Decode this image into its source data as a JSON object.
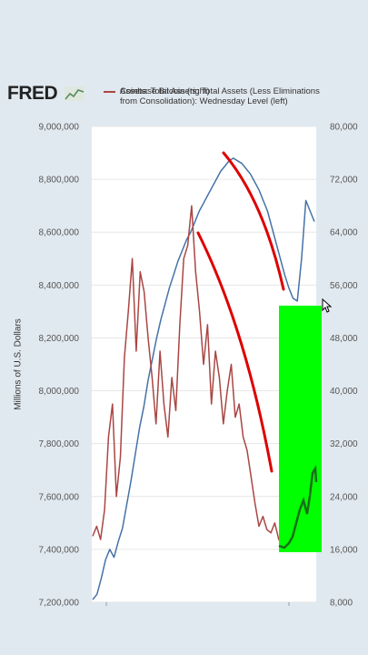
{
  "brand": {
    "logo_text": "FRED"
  },
  "chart_data": {
    "type": "line",
    "ylabel": "Millions of U.S. Dollars",
    "left_axis": {
      "min": 7200000,
      "max": 9000000,
      "ticks": [
        "9,000,000",
        "8,800,000",
        "8,600,000",
        "8,400,000",
        "8,200,000",
        "8,000,000",
        "7,800,000",
        "7,600,000",
        "7,400,000",
        "7,200,000"
      ]
    },
    "right_axis": {
      "min": 8000,
      "max": 80000,
      "ticks": [
        "80,000",
        "72,000",
        "64,000",
        "56,000",
        "48,000",
        "40,000",
        "32,000",
        "24,000",
        "16,000",
        "8,000"
      ]
    },
    "series": [
      {
        "name": "Assets: Total Assets: Total Assets (Less Eliminations from Consolidation): Wednesday Level (left)",
        "legend_text": "Assets: Total Assets: Total Assets (Less Eliminations from Consolidation): Wednesday Level (left)",
        "axis": "left",
        "color": "#4572a7",
        "values": [
          7210000,
          7230000,
          7290000,
          7360000,
          7400000,
          7370000,
          7430000,
          7480000,
          7570000,
          7660000,
          7760000,
          7860000,
          7940000,
          8040000,
          8120000,
          8200000,
          8270000,
          8330000,
          8390000,
          8440000,
          8490000,
          8530000,
          8570000,
          8600000,
          8640000,
          8680000,
          8710000,
          8740000,
          8770000,
          8800000,
          8830000,
          8850000,
          8870000,
          8880000,
          8870000,
          8860000,
          8840000,
          8820000,
          8790000,
          8760000,
          8720000,
          8680000,
          8620000,
          8560000,
          8500000,
          8440000,
          8390000,
          8350000,
          8340000,
          8500000,
          8720000,
          8680000,
          8640000
        ]
      },
      {
        "name": "Coinbase Bitcoin (right)",
        "legend_text": "Coinbase Bitcoin (right)",
        "axis": "right",
        "color": "#aa4643",
        "values": [
          18000,
          19500,
          17500,
          22000,
          33000,
          38000,
          24000,
          30000,
          45000,
          52000,
          60000,
          46000,
          58000,
          55000,
          48000,
          42000,
          35000,
          46000,
          38000,
          33000,
          42000,
          37000,
          50000,
          60000,
          62000,
          68000,
          58000,
          52000,
          44000,
          50000,
          38000,
          46000,
          42000,
          35000,
          40000,
          44000,
          36000,
          38000,
          33000,
          31000,
          27000,
          23000,
          19500,
          21000,
          19000,
          18500,
          20000,
          17500,
          16500,
          16000,
          16800,
          21000,
          23000,
          25500,
          22000,
          27000,
          28000
        ]
      }
    ]
  },
  "annotations": {
    "highlight_color": "#00ff00",
    "arrow_color": "#dd0000",
    "trend_color": "#1a6e1a"
  }
}
